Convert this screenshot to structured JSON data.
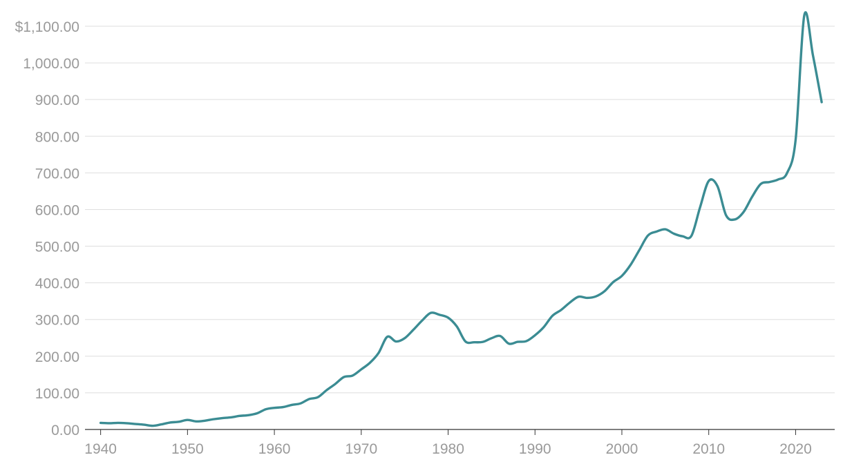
{
  "colors": {
    "series": "#3b8c93",
    "grid": "#dedede",
    "tick_text": "#9a9a9a",
    "axis": "#333333"
  },
  "chart_data": {
    "type": "line",
    "title": "",
    "xlabel": "",
    "ylabel": "",
    "xlim": [
      1938.2,
      2024.5
    ],
    "ylim": [
      0,
      1100
    ],
    "grid": true,
    "legend": "none",
    "x_ticks": [
      1940,
      1950,
      1960,
      1970,
      1980,
      1990,
      2000,
      2010,
      2020
    ],
    "x_tick_labels": [
      "1940",
      "1950",
      "1960",
      "1970",
      "1980",
      "1990",
      "2000",
      "2010",
      "2020"
    ],
    "y_ticks": [
      0,
      100,
      200,
      300,
      400,
      500,
      600,
      700,
      800,
      900,
      1000,
      1100
    ],
    "y_tick_labels": [
      "0.00",
      "100.00",
      "200.00",
      "300.00",
      "400.00",
      "500.00",
      "600.00",
      "700.00",
      "800.00",
      "900.00",
      "1,000.00",
      "$1,100.00"
    ],
    "series": [
      {
        "x": [
          1940,
          1941,
          1942,
          1943,
          1944,
          1945,
          1946,
          1947,
          1948,
          1949,
          1950,
          1951,
          1952,
          1953,
          1954,
          1955,
          1956,
          1957,
          1958,
          1959,
          1960,
          1961,
          1962,
          1963,
          1964,
          1965,
          1966,
          1967,
          1968,
          1969,
          1970,
          1971,
          1972,
          1973,
          1974,
          1975,
          1976,
          1977,
          1978,
          1979,
          1980,
          1981,
          1982,
          1983,
          1984,
          1985,
          1986,
          1987,
          1988,
          1989,
          1990,
          1991,
          1992,
          1993,
          1994,
          1995,
          1996,
          1997,
          1998,
          1999,
          2000,
          2001,
          2002,
          2003,
          2004,
          2005,
          2006,
          2007,
          2008,
          2009,
          2010,
          2011,
          2012,
          2013,
          2014,
          2015,
          2016,
          2017,
          2018,
          2019,
          2020,
          2021,
          2022,
          2023
        ],
        "values": [
          18,
          17,
          18,
          17,
          15,
          13,
          10,
          14,
          19,
          21,
          26,
          22,
          24,
          28,
          31,
          33,
          37,
          39,
          44,
          55,
          59,
          61,
          67,
          71,
          83,
          88,
          107,
          124,
          143,
          147,
          164,
          182,
          209,
          253,
          240,
          249,
          272,
          297,
          318,
          313,
          305,
          281,
          240,
          238,
          239,
          249,
          255,
          234,
          239,
          241,
          257,
          279,
          310,
          326,
          346,
          362,
          359,
          363,
          377,
          402,
          419,
          449,
          489,
          529,
          540,
          546,
          534,
          527,
          528,
          606,
          678,
          664,
          584,
          573,
          593,
          635,
          670,
          675,
          682,
          699,
          790,
          1130,
          1020,
          893
        ]
      }
    ]
  }
}
